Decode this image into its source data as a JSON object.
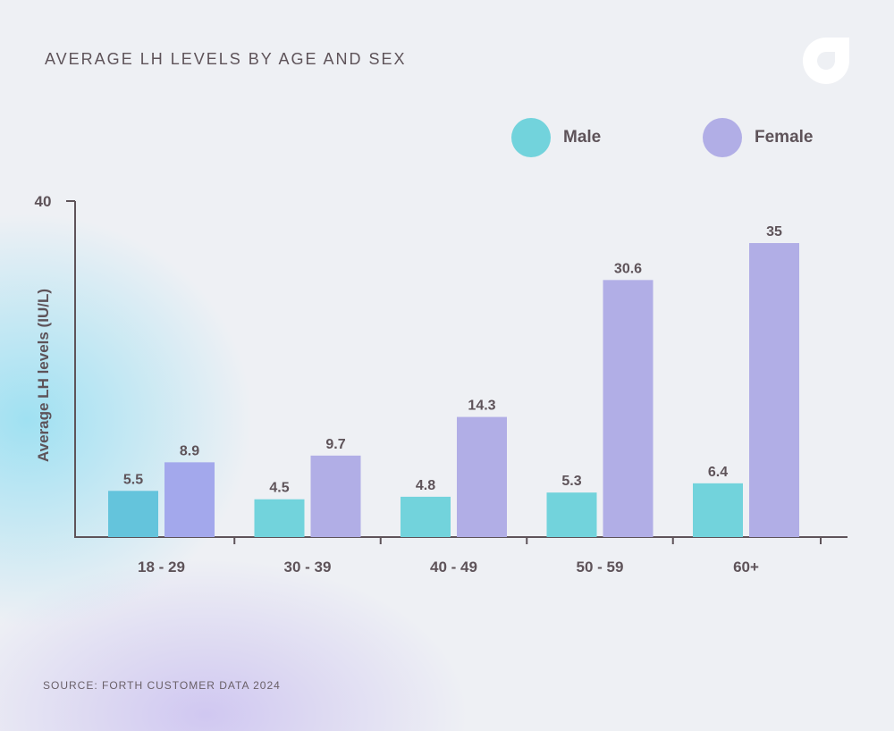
{
  "title": "AVERAGE LH LEVELS BY AGE AND SEX",
  "source": "SOURCE: FORTH CUSTOMER DATA 2024",
  "logo_icon": "forth-logo-icon",
  "colors": {
    "male": "#72d3dc",
    "female": "#b1aee6",
    "female_first": "#a3a8ec",
    "male_first": "#64c4dc",
    "axis": "#5e5359"
  },
  "legend": {
    "male_label": "Male",
    "female_label": "Female"
  },
  "chart_data": {
    "type": "bar",
    "title": "AVERAGE LH LEVELS BY AGE AND SEX",
    "xlabel": "",
    "ylabel": "Average LH levels (IU/L)",
    "ylim": [
      0,
      40
    ],
    "y_ticks": [
      "40"
    ],
    "categories": [
      "18 - 29",
      "30 - 39",
      "40 - 49",
      "50 - 59",
      "60+"
    ],
    "series": [
      {
        "name": "Male",
        "values": [
          5.5,
          4.5,
          4.8,
          5.3,
          6.4
        ],
        "labels": [
          "5.5",
          "4.5",
          "4.8",
          "5.3",
          "6.4"
        ]
      },
      {
        "name": "Female",
        "values": [
          8.9,
          9.7,
          14.3,
          30.6,
          35
        ],
        "labels": [
          "8.9",
          "9.7",
          "14.3",
          "30.6",
          "35"
        ]
      }
    ],
    "legend_position": "top-right",
    "grid": false
  }
}
